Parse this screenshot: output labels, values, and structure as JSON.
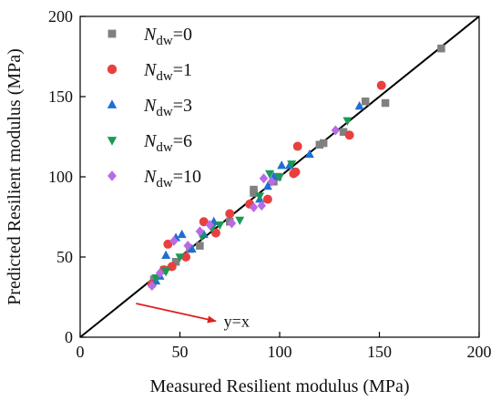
{
  "chart_data": {
    "type": "scatter",
    "title": "",
    "xlabel": "Measured Resilient modulus (MPa)",
    "ylabel": "Predicted Resilient modulus (MPa)",
    "xlim": [
      0,
      200
    ],
    "ylim": [
      0,
      200
    ],
    "xticks": [
      0,
      50,
      100,
      150,
      200
    ],
    "yticks": [
      0,
      50,
      100,
      150,
      200
    ],
    "grid": false,
    "legend_position": "top-left",
    "reference_line": {
      "label": "y=x",
      "slope": 1,
      "intercept": 0,
      "color": "#000000"
    },
    "annotation": {
      "text": "y=x",
      "arrow_color": "#e0201f",
      "arrow_from": [
        28,
        21
      ],
      "arrow_to": [
        68,
        10
      ],
      "text_at": [
        72,
        10
      ]
    },
    "series": [
      {
        "legend_symbol": "N",
        "legend_subscript": "dw",
        "legend_suffix": "=0",
        "marker": "square",
        "color": "#808080",
        "points": [
          [
            181,
            180
          ],
          [
            153,
            146
          ],
          [
            143,
            147
          ],
          [
            132,
            128
          ],
          [
            122,
            121
          ],
          [
            120,
            120
          ],
          [
            99,
            100
          ],
          [
            97,
            97
          ],
          [
            87,
            92
          ],
          [
            87,
            90
          ],
          [
            75,
            72
          ],
          [
            60,
            57
          ],
          [
            55,
            55
          ],
          [
            48,
            47
          ],
          [
            42,
            42
          ],
          [
            37,
            36
          ]
        ]
      },
      {
        "legend_symbol": "N",
        "legend_subscript": "dw",
        "legend_suffix": "=1",
        "marker": "circle",
        "color": "#e8403f",
        "points": [
          [
            151,
            157
          ],
          [
            135,
            126
          ],
          [
            109,
            119
          ],
          [
            108,
            103
          ],
          [
            107,
            102
          ],
          [
            94,
            86
          ],
          [
            85,
            83
          ],
          [
            75,
            77
          ],
          [
            68,
            65
          ],
          [
            62,
            72
          ],
          [
            53,
            50
          ],
          [
            46,
            44
          ],
          [
            44,
            58
          ],
          [
            42,
            42
          ],
          [
            36,
            33
          ]
        ]
      },
      {
        "legend_symbol": "N",
        "legend_subscript": "dw",
        "legend_suffix": "=3",
        "marker": "triangle-up",
        "color": "#1f6fd1",
        "points": [
          [
            140,
            144
          ],
          [
            115,
            114
          ],
          [
            105,
            107
          ],
          [
            101,
            107
          ],
          [
            97,
            100
          ],
          [
            94,
            94
          ],
          [
            90,
            86
          ],
          [
            67,
            72
          ],
          [
            62,
            64
          ],
          [
            56,
            55
          ],
          [
            51,
            64
          ],
          [
            48,
            62
          ],
          [
            43,
            51
          ],
          [
            40,
            38
          ],
          [
            38,
            35
          ]
        ]
      },
      {
        "legend_symbol": "N",
        "legend_subscript": "dw",
        "legend_suffix": "=6",
        "marker": "triangle-down",
        "color": "#1a9a57",
        "points": [
          [
            134,
            135
          ],
          [
            106,
            108
          ],
          [
            100,
            100
          ],
          [
            95,
            102
          ],
          [
            90,
            88
          ],
          [
            80,
            73
          ],
          [
            70,
            70
          ],
          [
            66,
            68
          ],
          [
            61,
            63
          ],
          [
            50,
            50
          ],
          [
            43,
            41
          ],
          [
            38,
            37
          ]
        ]
      },
      {
        "legend_symbol": "N",
        "legend_subscript": "dw",
        "legend_suffix": "=10",
        "marker": "diamond",
        "color": "#b86be4",
        "points": [
          [
            128,
            129
          ],
          [
            96,
            97
          ],
          [
            92,
            99
          ],
          [
            91,
            82
          ],
          [
            87,
            81
          ],
          [
            76,
            71
          ],
          [
            65,
            70
          ],
          [
            60,
            66
          ],
          [
            54,
            57
          ],
          [
            47,
            60
          ],
          [
            40,
            40
          ],
          [
            36,
            32
          ]
        ]
      }
    ]
  }
}
